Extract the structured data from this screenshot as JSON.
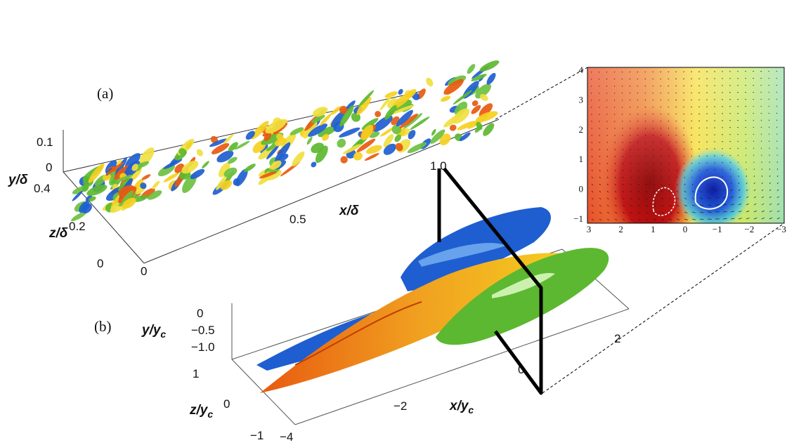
{
  "panel_a": {
    "label": "(a)",
    "y_axis": {
      "label": "y/δ",
      "ticks": [
        "0.1",
        "0"
      ]
    },
    "z_axis": {
      "label": "z/δ",
      "ticks": [
        "0.4",
        "0.2",
        "0"
      ]
    },
    "x_axis": {
      "label": "x/δ",
      "ticks": [
        "0",
        "0.5",
        "1.0"
      ]
    }
  },
  "panel_b": {
    "label": "(b)",
    "y_axis": {
      "label": {
        "main": "y/y",
        "sub": "c"
      },
      "ticks": [
        "0",
        "−0.5",
        "−1.0"
      ]
    },
    "z_axis": {
      "label": {
        "main": "z/y",
        "sub": "c"
      },
      "ticks": [
        "1",
        "0",
        "−1"
      ]
    },
    "x_axis": {
      "label": {
        "main": "x/y",
        "sub": "c"
      },
      "ticks": [
        "−4",
        "−2",
        "0",
        "2"
      ]
    }
  },
  "inset": {
    "y_ticks": [
      "4",
      "3",
      "2",
      "1",
      "0",
      "−1"
    ],
    "x_ticks": [
      "3",
      "2",
      "1",
      "0",
      "−1",
      "−2",
      "−3"
    ]
  }
}
